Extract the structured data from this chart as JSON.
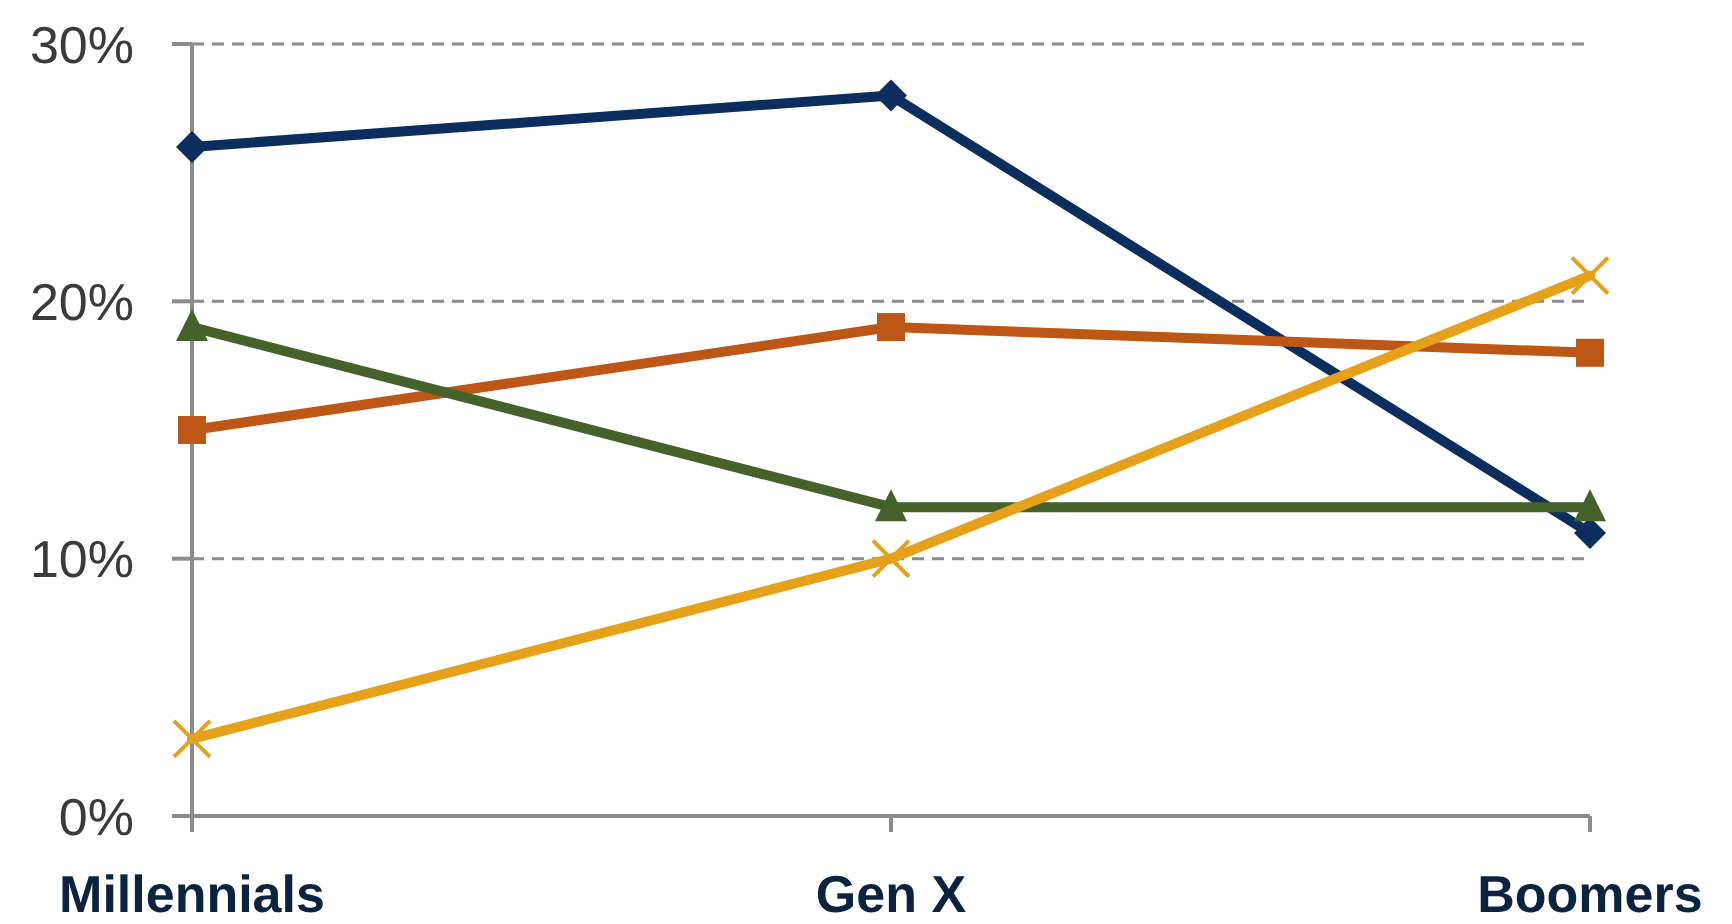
{
  "chart_data": {
    "type": "line",
    "categories": [
      "Millennials",
      "Gen X",
      "Boomers"
    ],
    "series": [
      {
        "color": "#0b2e5e",
        "marker": "diamond",
        "values": [
          26,
          28,
          11
        ]
      },
      {
        "color": "#bd5716",
        "marker": "square",
        "values": [
          15,
          19,
          18
        ]
      },
      {
        "color": "#45622a",
        "marker": "triangle",
        "values": [
          19,
          12,
          12
        ]
      },
      {
        "color": "#e6a11b",
        "marker": "cross",
        "values": [
          3,
          10,
          21
        ]
      }
    ],
    "ylim": [
      0,
      30
    ],
    "yticks": [
      {
        "value": 0,
        "label": "0%"
      },
      {
        "value": 10,
        "label": "10%"
      },
      {
        "value": 20,
        "label": "20%"
      },
      {
        "value": 30,
        "label": "30%"
      }
    ],
    "grid": "y",
    "line_style": "solid"
  }
}
